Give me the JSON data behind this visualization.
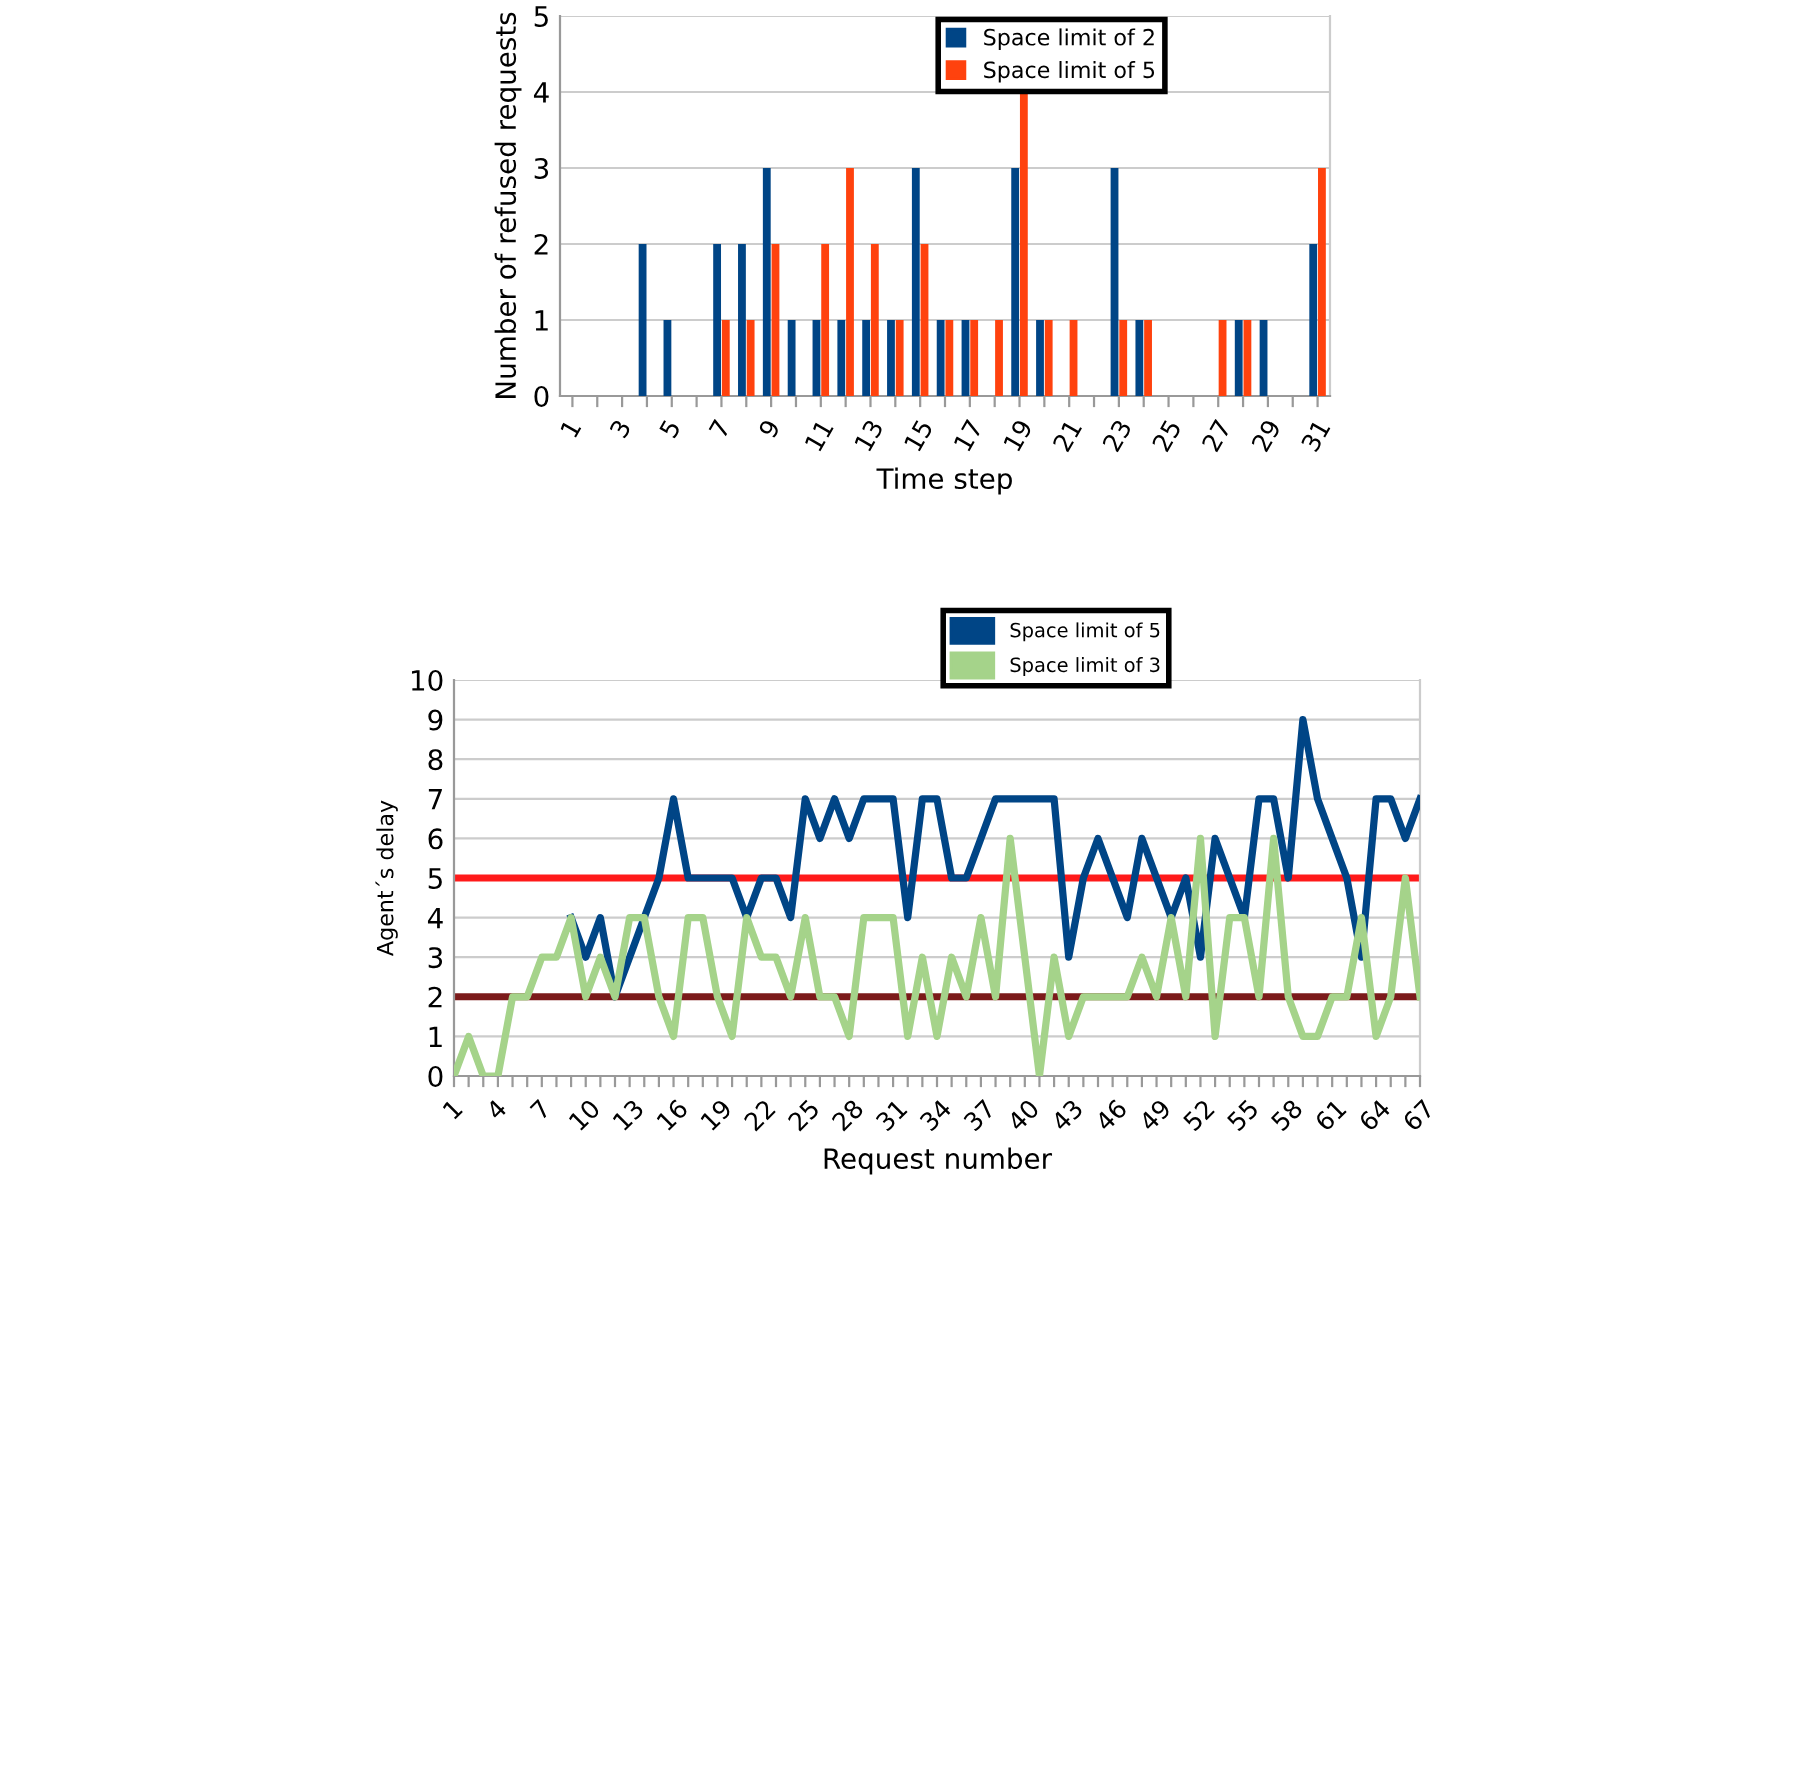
{
  "chart_data": [
    {
      "type": "bar",
      "xlabel": "Time step",
      "ylabel": "Number of refused requests",
      "categories": [
        "1",
        null,
        "3",
        null,
        "5",
        null,
        "7",
        null,
        "9",
        null,
        "11",
        null,
        "13",
        null,
        "15",
        null,
        "17",
        null,
        "19",
        null,
        "21",
        null,
        "23",
        null,
        "25",
        null,
        "27",
        null,
        "29",
        null,
        "31"
      ],
      "series": [
        {
          "name": "Space limit of 2",
          "color": "#004586",
          "values": [
            0,
            0,
            0,
            2,
            1,
            0,
            2,
            2,
            3,
            1,
            1,
            1,
            1,
            1,
            3,
            1,
            1,
            0,
            3,
            1,
            0,
            0,
            3,
            1,
            0,
            0,
            0,
            1,
            1,
            0,
            2
          ]
        },
        {
          "name": "Space limit of 5",
          "color": "#ff420e",
          "values": [
            0,
            0,
            0,
            0,
            0,
            0,
            1,
            1,
            2,
            0,
            2,
            3,
            2,
            1,
            2,
            1,
            1,
            1,
            4,
            1,
            1,
            0,
            1,
            1,
            0,
            0,
            1,
            1,
            0,
            0,
            3
          ]
        }
      ],
      "ylim": [
        0,
        5
      ],
      "yticks": [
        0,
        1,
        2,
        3,
        4,
        5
      ],
      "grid": "y",
      "legend": "top right"
    },
    {
      "type": "line",
      "xlabel": "Request number",
      "ylabel": "Agent´s delay",
      "categories": [
        "1",
        null,
        null,
        "4",
        null,
        null,
        "7",
        null,
        null,
        "10",
        null,
        null,
        "13",
        null,
        null,
        "16",
        null,
        null,
        "19",
        null,
        null,
        "22",
        null,
        null,
        "25",
        null,
        null,
        "28",
        null,
        null,
        "31",
        null,
        null,
        "34",
        null,
        null,
        "37",
        null,
        null,
        "40",
        null,
        null,
        "43",
        null,
        null,
        "46",
        null,
        null,
        "49",
        null,
        null,
        "52",
        null,
        null,
        "55",
        null,
        null,
        "58",
        null,
        null,
        "61",
        null,
        null,
        "64",
        null,
        null,
        "67"
      ],
      "series": [
        {
          "name": "Space limit of 5",
          "color": "#004586",
          "values": [
            null,
            null,
            null,
            null,
            null,
            null,
            null,
            null,
            4,
            3,
            4,
            2,
            3,
            4,
            5,
            7,
            5,
            5,
            5,
            5,
            4,
            5,
            5,
            4,
            7,
            6,
            7,
            6,
            7,
            7,
            7,
            4,
            7,
            7,
            5,
            5,
            6,
            7,
            7,
            7,
            7,
            7,
            3,
            5,
            6,
            5,
            4,
            6,
            5,
            4,
            5,
            3,
            6,
            5,
            4,
            7,
            7,
            5,
            9,
            7,
            6,
            5,
            3,
            7,
            7,
            6,
            7
          ]
        },
        {
          "name": "Space limit of 3",
          "color": "#a5d38a",
          "values": [
            0,
            1,
            0,
            0,
            2,
            2,
            3,
            3,
            4,
            2,
            3,
            2,
            4,
            4,
            2,
            1,
            4,
            4,
            2,
            1,
            4,
            3,
            3,
            2,
            4,
            2,
            2,
            1,
            4,
            4,
            4,
            1,
            3,
            1,
            3,
            2,
            4,
            2,
            6,
            3,
            0,
            3,
            1,
            2,
            2,
            2,
            2,
            3,
            2,
            4,
            2,
            6,
            1,
            4,
            4,
            2,
            6,
            2,
            1,
            1,
            2,
            2,
            4,
            1,
            2,
            5,
            2
          ]
        }
      ],
      "ylim": [
        0,
        10
      ],
      "yticks": [
        0,
        1,
        2,
        3,
        4,
        5,
        6,
        7,
        8,
        9,
        10
      ],
      "grid": "y",
      "legend": "top right",
      "ref_lines": [
        {
          "axis": "y",
          "value": 5,
          "color": "#ff1a1a"
        },
        {
          "axis": "y",
          "value": 2,
          "color": "#7b1a1a"
        }
      ]
    }
  ]
}
